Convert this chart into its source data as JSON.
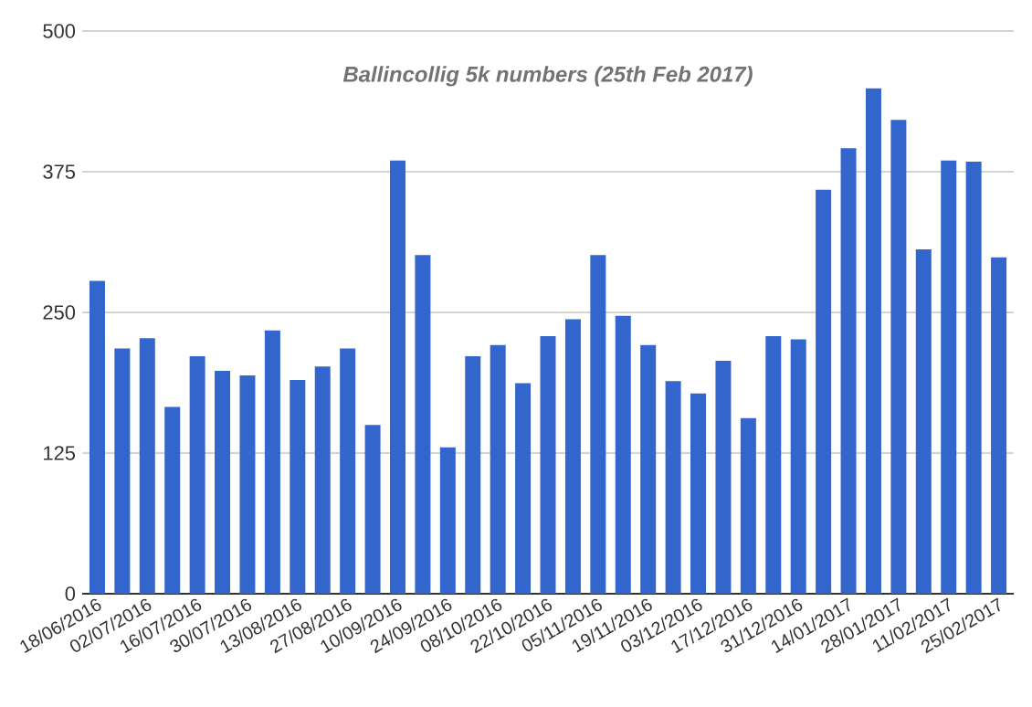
{
  "chart_data": {
    "type": "bar",
    "title": "Ballincollig 5k numbers (25th Feb 2017)",
    "categories": [
      "18/06/2016",
      null,
      "02/07/2016",
      null,
      "16/07/2016",
      null,
      "30/07/2016",
      null,
      "13/08/2016",
      null,
      "27/08/2016",
      null,
      "10/09/2016",
      null,
      "24/09/2016",
      null,
      "08/10/2016",
      null,
      "22/10/2016",
      null,
      "05/11/2016",
      null,
      "19/11/2016",
      null,
      "03/12/2016",
      null,
      "17/12/2016",
      null,
      "31/12/2016",
      null,
      "14/01/2017",
      null,
      "28/01/2017",
      null,
      "11/02/2017",
      null,
      "25/02/2017"
    ],
    "values": [
      278,
      218,
      227,
      166,
      211,
      198,
      194,
      234,
      190,
      202,
      218,
      150,
      385,
      301,
      130,
      211,
      221,
      187,
      229,
      244,
      301,
      247,
      221,
      189,
      178,
      207,
      156,
      229,
      226,
      359,
      396,
      449,
      421,
      306,
      385,
      384,
      299
    ],
    "color": "#3366cc",
    "ylim": [
      0,
      500
    ],
    "yticks": [
      0,
      125,
      250,
      375,
      500
    ],
    "grid": "y"
  }
}
